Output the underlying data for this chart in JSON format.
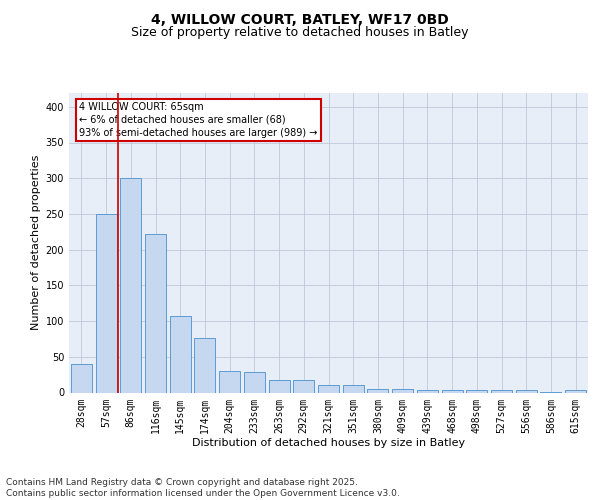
{
  "title_line1": "4, WILLOW COURT, BATLEY, WF17 0BD",
  "title_line2": "Size of property relative to detached houses in Batley",
  "xlabel": "Distribution of detached houses by size in Batley",
  "ylabel": "Number of detached properties",
  "categories": [
    "28sqm",
    "57sqm",
    "86sqm",
    "116sqm",
    "145sqm",
    "174sqm",
    "204sqm",
    "233sqm",
    "263sqm",
    "292sqm",
    "321sqm",
    "351sqm",
    "380sqm",
    "409sqm",
    "439sqm",
    "468sqm",
    "498sqm",
    "527sqm",
    "556sqm",
    "586sqm",
    "615sqm"
  ],
  "values": [
    40,
    250,
    300,
    222,
    107,
    76,
    30,
    29,
    17,
    17,
    10,
    10,
    5,
    5,
    4,
    3,
    4,
    3,
    3,
    1,
    4
  ],
  "bar_color": "#c5d8f0",
  "bar_edge_color": "#5b9bd5",
  "vline_x": 1.5,
  "vline_color": "#cc0000",
  "annotation_text": "4 WILLOW COURT: 65sqm\n← 6% of detached houses are smaller (68)\n93% of semi-detached houses are larger (989) →",
  "annotation_box_color": "#ffffff",
  "annotation_box_edge": "#cc0000",
  "ylim": [
    0,
    420
  ],
  "yticks": [
    0,
    50,
    100,
    150,
    200,
    250,
    300,
    350,
    400
  ],
  "grid_color": "#c0c8d8",
  "background_color": "#e8eef8",
  "footer_text": "Contains HM Land Registry data © Crown copyright and database right 2025.\nContains public sector information licensed under the Open Government Licence v3.0.",
  "title_fontsize": 10,
  "subtitle_fontsize": 9,
  "axis_label_fontsize": 8,
  "tick_fontsize": 7,
  "annotation_fontsize": 7,
  "footer_fontsize": 6.5
}
